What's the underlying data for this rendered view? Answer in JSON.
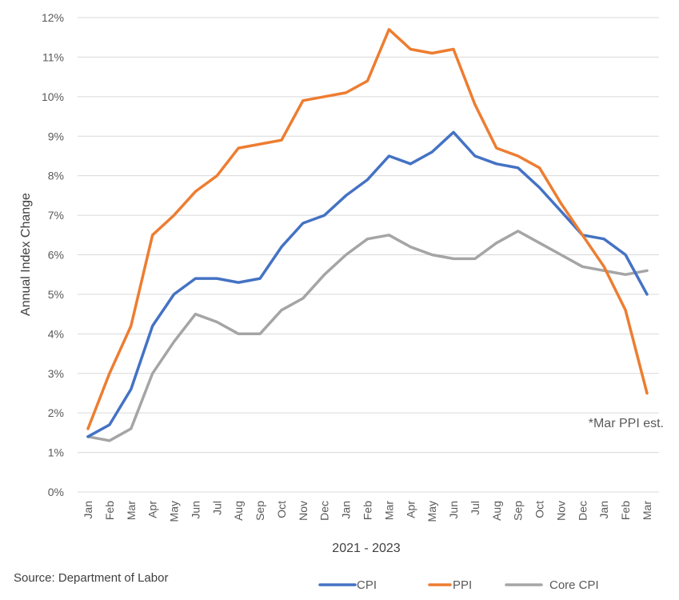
{
  "chart_data": {
    "type": "line",
    "xlabel": "2021 - 2023",
    "ylabel": "Annual Index Change",
    "ylim": [
      0,
      12
    ],
    "y_ticks": [
      "0%",
      "1%",
      "2%",
      "3%",
      "4%",
      "5%",
      "6%",
      "7%",
      "8%",
      "9%",
      "10%",
      "11%",
      "12%"
    ],
    "grid": true,
    "legend_position": "bottom-right",
    "categories": [
      "Jan",
      "Feb",
      "Mar",
      "Apr",
      "May",
      "Jun",
      "Jul",
      "Aug",
      "Sep",
      "Oct",
      "Nov",
      "Dec",
      "Jan",
      "Feb",
      "Mar",
      "Apr",
      "May",
      "Jun",
      "Jul",
      "Aug",
      "Sep",
      "Oct",
      "Nov",
      "Dec",
      "Jan",
      "Feb",
      "Mar"
    ],
    "series": [
      {
        "name": "CPI",
        "color": "#4472C4",
        "values": [
          1.4,
          1.7,
          2.6,
          4.2,
          5.0,
          5.4,
          5.4,
          5.3,
          5.4,
          6.2,
          6.8,
          7.0,
          7.5,
          7.9,
          8.5,
          8.3,
          8.6,
          9.1,
          8.5,
          8.3,
          8.2,
          7.7,
          7.1,
          6.5,
          6.4,
          6.0,
          5.0
        ]
      },
      {
        "name": "PPI",
        "color": "#ED7D31",
        "values": [
          1.6,
          3.0,
          4.2,
          6.5,
          7.0,
          7.6,
          8.0,
          8.7,
          8.8,
          8.9,
          9.9,
          10.0,
          10.1,
          10.4,
          11.7,
          11.2,
          11.1,
          11.2,
          9.8,
          8.7,
          8.5,
          8.2,
          7.3,
          6.5,
          5.7,
          4.6,
          2.5
        ]
      },
      {
        "name": "Core CPI",
        "color": "#A5A5A5",
        "values": [
          1.4,
          1.3,
          1.6,
          3.0,
          3.8,
          4.5,
          4.3,
          4.0,
          4.0,
          4.6,
          4.9,
          5.5,
          6.0,
          6.4,
          6.5,
          6.2,
          6.0,
          5.9,
          5.9,
          6.3,
          6.6,
          6.3,
          6.0,
          5.7,
          5.6,
          5.5,
          5.6
        ]
      }
    ],
    "annotation": "*Mar PPI est.",
    "source": "Source: Department of Labor"
  }
}
